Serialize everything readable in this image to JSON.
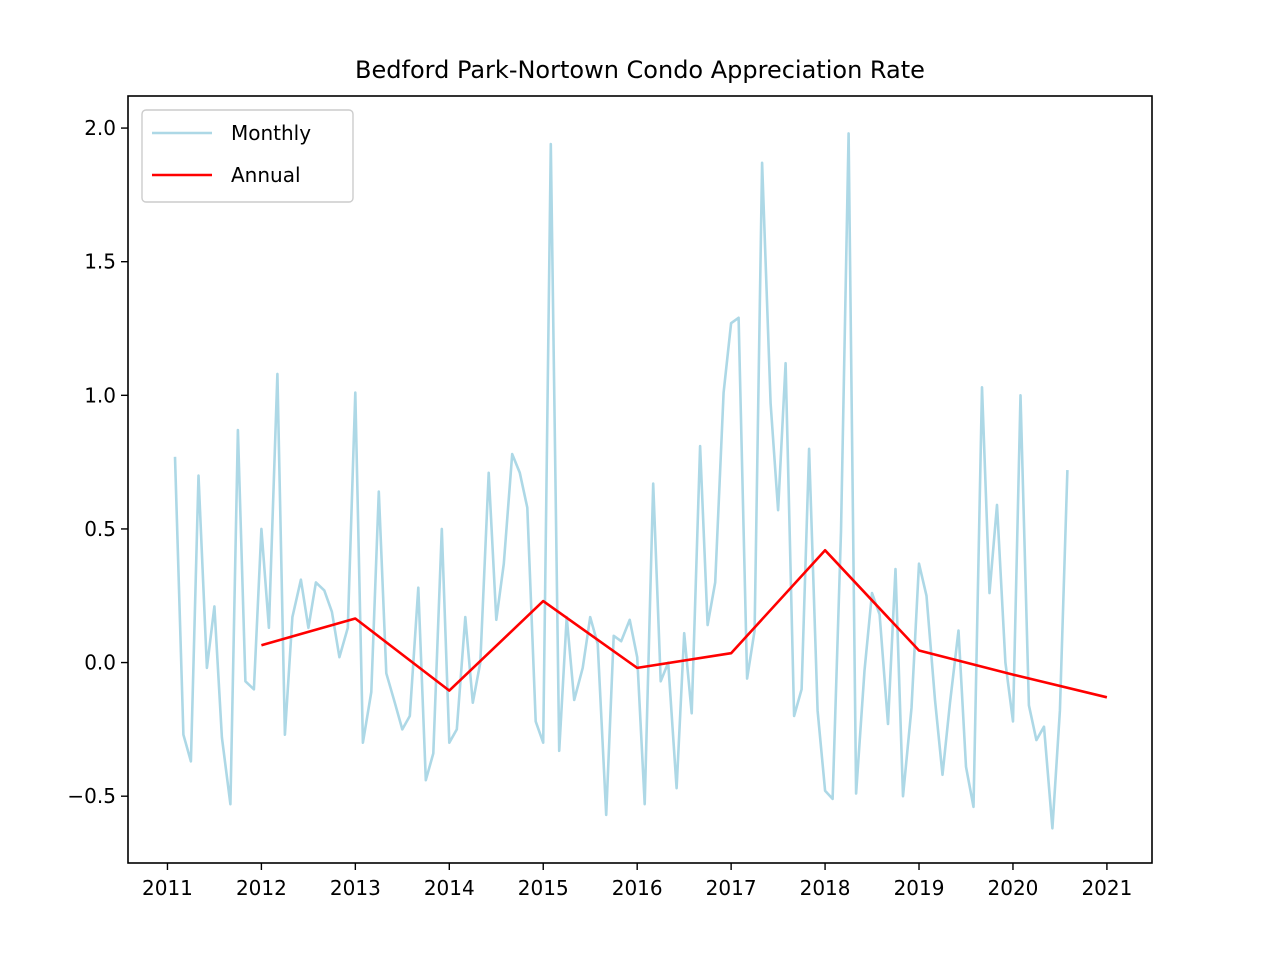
{
  "chart_data": {
    "type": "line",
    "title": "Bedford Park-Nortown Condo Appreciation Rate",
    "xlabel": "",
    "ylabel": "",
    "xlim": [
      2010.58,
      2021.48
    ],
    "ylim": [
      -0.75,
      2.12
    ],
    "x_ticks": [
      "2011",
      "2012",
      "2013",
      "2014",
      "2015",
      "2016",
      "2017",
      "2018",
      "2019",
      "2020",
      "2021"
    ],
    "y_ticks": [
      {
        "value": -0.5,
        "label": "−0.5"
      },
      {
        "value": 0.0,
        "label": "0.0"
      },
      {
        "value": 0.5,
        "label": "0.5"
      },
      {
        "value": 1.0,
        "label": "1.0"
      },
      {
        "value": 1.5,
        "label": "1.5"
      },
      {
        "value": 2.0,
        "label": "2.0"
      }
    ],
    "grid": false,
    "legend_position": "top-left",
    "series": [
      {
        "name": "Monthly",
        "color": "#add8e6",
        "points": [
          [
            2011.08,
            0.77
          ],
          [
            2011.17,
            -0.27
          ],
          [
            2011.25,
            -0.37
          ],
          [
            2011.33,
            0.7
          ],
          [
            2011.42,
            -0.02
          ],
          [
            2011.5,
            0.21
          ],
          [
            2011.58,
            -0.28
          ],
          [
            2011.67,
            -0.53
          ],
          [
            2011.75,
            0.87
          ],
          [
            2011.83,
            -0.07
          ],
          [
            2011.92,
            -0.1
          ],
          [
            2012.0,
            0.5
          ],
          [
            2012.08,
            0.13
          ],
          [
            2012.17,
            1.08
          ],
          [
            2012.25,
            -0.27
          ],
          [
            2012.33,
            0.17
          ],
          [
            2012.42,
            0.31
          ],
          [
            2012.5,
            0.13
          ],
          [
            2012.58,
            0.3
          ],
          [
            2012.67,
            0.27
          ],
          [
            2012.75,
            0.19
          ],
          [
            2012.83,
            0.02
          ],
          [
            2012.92,
            0.13
          ],
          [
            2013.0,
            1.01
          ],
          [
            2013.08,
            -0.3
          ],
          [
            2013.17,
            -0.11
          ],
          [
            2013.25,
            0.64
          ],
          [
            2013.33,
            -0.04
          ],
          [
            2013.42,
            -0.15
          ],
          [
            2013.5,
            -0.25
          ],
          [
            2013.58,
            -0.2
          ],
          [
            2013.67,
            0.28
          ],
          [
            2013.75,
            -0.44
          ],
          [
            2013.83,
            -0.34
          ],
          [
            2013.92,
            0.5
          ],
          [
            2014.0,
            -0.3
          ],
          [
            2014.08,
            -0.25
          ],
          [
            2014.17,
            0.17
          ],
          [
            2014.25,
            -0.15
          ],
          [
            2014.33,
            0.0
          ],
          [
            2014.42,
            0.71
          ],
          [
            2014.5,
            0.16
          ],
          [
            2014.58,
            0.37
          ],
          [
            2014.67,
            0.78
          ],
          [
            2014.75,
            0.71
          ],
          [
            2014.83,
            0.58
          ],
          [
            2014.92,
            -0.22
          ],
          [
            2015.0,
            -0.3
          ],
          [
            2015.08,
            1.94
          ],
          [
            2015.17,
            -0.33
          ],
          [
            2015.25,
            0.17
          ],
          [
            2015.33,
            -0.14
          ],
          [
            2015.42,
            -0.02
          ],
          [
            2015.5,
            0.17
          ],
          [
            2015.58,
            0.07
          ],
          [
            2015.67,
            -0.57
          ],
          [
            2015.75,
            0.1
          ],
          [
            2015.83,
            0.08
          ],
          [
            2015.92,
            0.16
          ],
          [
            2016.0,
            0.02
          ],
          [
            2016.08,
            -0.53
          ],
          [
            2016.17,
            0.67
          ],
          [
            2016.25,
            -0.07
          ],
          [
            2016.33,
            0.0
          ],
          [
            2016.42,
            -0.47
          ],
          [
            2016.5,
            0.11
          ],
          [
            2016.58,
            -0.19
          ],
          [
            2016.67,
            0.81
          ],
          [
            2016.75,
            0.14
          ],
          [
            2016.83,
            0.3
          ],
          [
            2016.92,
            1.01
          ],
          [
            2017.0,
            1.27
          ],
          [
            2017.08,
            1.29
          ],
          [
            2017.17,
            -0.06
          ],
          [
            2017.25,
            0.12
          ],
          [
            2017.33,
            1.87
          ],
          [
            2017.42,
            0.97
          ],
          [
            2017.5,
            0.57
          ],
          [
            2017.58,
            1.12
          ],
          [
            2017.67,
            -0.2
          ],
          [
            2017.75,
            -0.1
          ],
          [
            2017.83,
            0.8
          ],
          [
            2017.92,
            -0.18
          ],
          [
            2018.0,
            -0.48
          ],
          [
            2018.08,
            -0.51
          ],
          [
            2018.17,
            0.49
          ],
          [
            2018.25,
            1.98
          ],
          [
            2018.33,
            -0.49
          ],
          [
            2018.42,
            -0.03
          ],
          [
            2018.5,
            0.26
          ],
          [
            2018.58,
            0.18
          ],
          [
            2018.67,
            -0.23
          ],
          [
            2018.75,
            0.35
          ],
          [
            2018.83,
            -0.5
          ],
          [
            2018.92,
            -0.17
          ],
          [
            2019.0,
            0.37
          ],
          [
            2019.08,
            0.25
          ],
          [
            2019.17,
            -0.14
          ],
          [
            2019.25,
            -0.42
          ],
          [
            2019.33,
            -0.15
          ],
          [
            2019.42,
            0.12
          ],
          [
            2019.5,
            -0.39
          ],
          [
            2019.58,
            -0.54
          ],
          [
            2019.67,
            1.03
          ],
          [
            2019.75,
            0.26
          ],
          [
            2019.83,
            0.59
          ],
          [
            2019.92,
            0.0
          ],
          [
            2020.0,
            -0.22
          ],
          [
            2020.08,
            1.0
          ],
          [
            2020.17,
            -0.16
          ],
          [
            2020.25,
            -0.29
          ],
          [
            2020.33,
            -0.24
          ],
          [
            2020.42,
            -0.62
          ],
          [
            2020.5,
            -0.18
          ],
          [
            2020.58,
            0.72
          ]
        ]
      },
      {
        "name": "Annual",
        "color": "#ff0000",
        "points": [
          [
            2012,
            0.065
          ],
          [
            2013,
            0.165
          ],
          [
            2014,
            -0.105
          ],
          [
            2015,
            0.23
          ],
          [
            2016,
            -0.02
          ],
          [
            2017,
            0.035
          ],
          [
            2018,
            0.42
          ],
          [
            2019,
            0.045
          ],
          [
            2020,
            -0.045
          ],
          [
            2021,
            -0.13
          ]
        ]
      }
    ]
  }
}
